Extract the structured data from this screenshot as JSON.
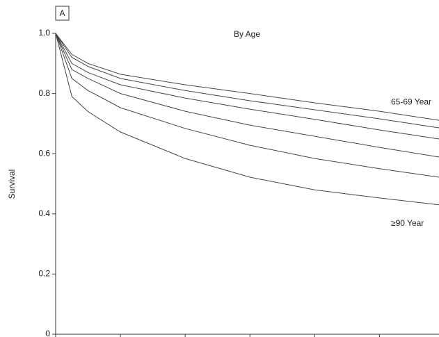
{
  "panel_label": "A",
  "chart_data": {
    "type": "line",
    "title": "By Age",
    "y_label": "Survival",
    "x": [
      0,
      0.25,
      0.5,
      1,
      2,
      3,
      4,
      5,
      5.92
    ],
    "xlim": [
      0,
      5.92
    ],
    "xticks": [
      0,
      1,
      2,
      3,
      4,
      5
    ],
    "ylim": [
      0,
      1
    ],
    "yticks": [
      0,
      0.2,
      0.4,
      0.6,
      0.8,
      {
        "value": 1,
        "label": "1.0"
      }
    ],
    "color": "#444444",
    "series": [
      {
        "name": "65-69 Year",
        "values": [
          1,
          0.93,
          0.9,
          0.864,
          0.829,
          0.8,
          0.769,
          0.741,
          0.711
        ]
      },
      {
        "values": [
          1,
          0.92,
          0.89,
          0.85,
          0.81,
          0.776,
          0.746,
          0.716,
          0.686
        ]
      },
      {
        "values": [
          1,
          0.9,
          0.87,
          0.829,
          0.785,
          0.748,
          0.714,
          0.679,
          0.649
        ]
      },
      {
        "values": [
          1,
          0.88,
          0.85,
          0.8,
          0.741,
          0.695,
          0.658,
          0.621,
          0.589
        ]
      },
      {
        "values": [
          1,
          0.85,
          0.81,
          0.753,
          0.684,
          0.628,
          0.584,
          0.55,
          0.522
        ]
      },
      {
        "name": "≥90 Year",
        "values": [
          1,
          0.79,
          0.74,
          0.672,
          0.584,
          0.522,
          0.48,
          0.453,
          0.43
        ]
      }
    ]
  }
}
